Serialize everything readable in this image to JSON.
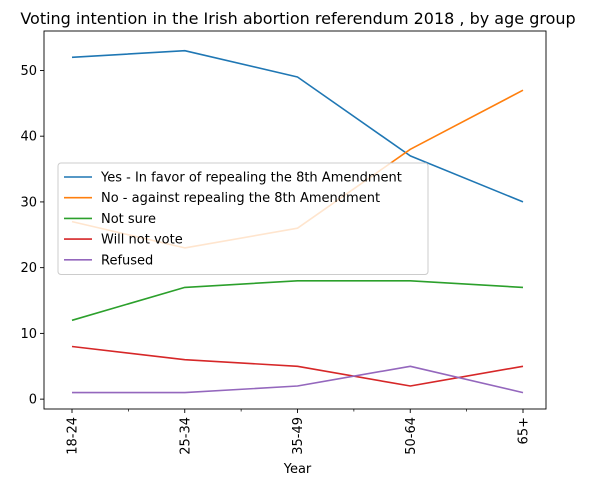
{
  "chart_data": {
    "type": "line",
    "title": "Voting intention in the Irish abortion referendum 2018 , by age group",
    "xlabel": "Year",
    "ylabel": "",
    "categories": [
      "18-24",
      "25-34",
      "35-49",
      "50-64",
      "65+"
    ],
    "ylim": [
      -1.5,
      56
    ],
    "yticks": [
      0,
      10,
      20,
      30,
      40,
      50
    ],
    "grid": false,
    "legend_placement": "center-left",
    "series": [
      {
        "name": "Yes - In favor of repealing the 8th Amendment",
        "color": "#1f77b4",
        "values": [
          52,
          53,
          49,
          37,
          30
        ]
      },
      {
        "name": "No - against repealing the 8th Amendment",
        "color": "#ff7f0e",
        "values": [
          27,
          23,
          26,
          38,
          47
        ]
      },
      {
        "name": "Not sure",
        "color": "#2ca02c",
        "values": [
          12,
          17,
          18,
          18,
          17
        ]
      },
      {
        "name": "Will not vote",
        "color": "#d62728",
        "values": [
          8,
          6,
          5,
          2,
          5
        ]
      },
      {
        "name": "Refused",
        "color": "#9467bd",
        "values": [
          1,
          1,
          2,
          5,
          1
        ]
      }
    ]
  }
}
